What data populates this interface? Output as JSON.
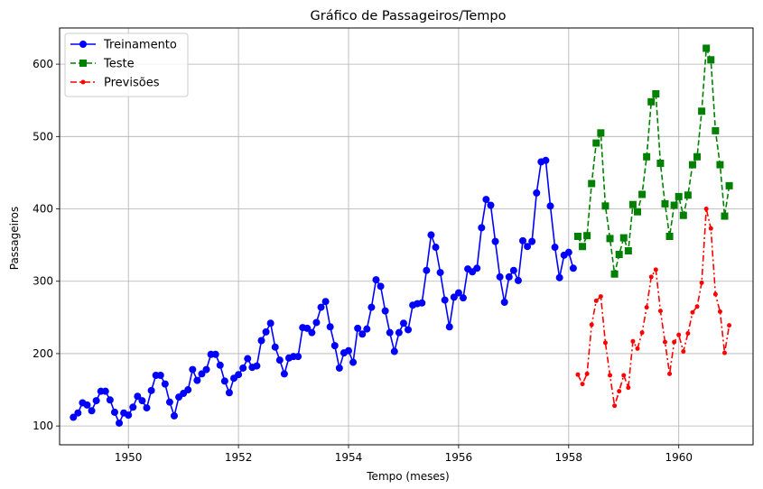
{
  "chart_data": {
    "type": "line",
    "title": "Gráfico de Passageiros/Tempo",
    "xlabel": "Tempo (meses)",
    "ylabel": "Passageiros",
    "xlim": [
      1948.75,
      1961.35
    ],
    "ylim": [
      74,
      650
    ],
    "x_ticks": [
      1950,
      1952,
      1954,
      1956,
      1958,
      1960
    ],
    "y_ticks": [
      100,
      200,
      300,
      400,
      500,
      600
    ],
    "grid": true,
    "legend_position": "top-left",
    "series": [
      {
        "name": "Treinamento",
        "color": "#0000ff",
        "linestyle": "solid",
        "marker": "circle",
        "x_start": 1949.0,
        "x_step": 0.0833333,
        "values": [
          112,
          118,
          132,
          129,
          121,
          135,
          148,
          148,
          136,
          119,
          104,
          118,
          115,
          126,
          141,
          135,
          125,
          149,
          170,
          170,
          158,
          133,
          114,
          140,
          145,
          150,
          178,
          163,
          172,
          178,
          199,
          199,
          184,
          162,
          146,
          166,
          171,
          180,
          193,
          181,
          183,
          218,
          230,
          242,
          209,
          191,
          172,
          194,
          196,
          196,
          236,
          235,
          229,
          243,
          264,
          272,
          237,
          211,
          180,
          201,
          204,
          188,
          235,
          227,
          234,
          264,
          302,
          293,
          259,
          229,
          203,
          229,
          242,
          233,
          267,
          269,
          270,
          315,
          364,
          347,
          312,
          274,
          237,
          278,
          284,
          277,
          317,
          313,
          318,
          374,
          413,
          405,
          355,
          306,
          271,
          306,
          315,
          301,
          356,
          348,
          355,
          422,
          465,
          467,
          404,
          347,
          305,
          336,
          340,
          318
        ]
      },
      {
        "name": "Teste",
        "color": "#008000",
        "linestyle": "dashed",
        "marker": "square",
        "x_start": 1958.1667,
        "x_step": 0.0833333,
        "values": [
          362,
          348,
          363,
          435,
          491,
          505,
          404,
          359,
          310,
          337,
          360,
          342,
          406,
          396,
          420,
          472,
          548,
          559,
          463,
          407,
          362,
          405,
          417,
          391,
          419,
          461,
          472,
          535,
          622,
          606,
          508,
          461,
          390,
          432
        ]
      },
      {
        "name": "Previsões",
        "color": "#ff0000",
        "linestyle": "dashdot",
        "marker": "small-circle",
        "x_start": 1958.1667,
        "x_step": 0.0833333,
        "values": [
          171,
          158,
          172,
          240,
          273,
          279,
          215,
          170,
          128,
          148,
          170,
          153,
          217,
          207,
          229,
          264,
          306,
          316,
          259,
          216,
          172,
          216,
          226,
          203,
          228,
          257,
          265,
          298,
          400,
          373,
          282,
          258,
          201,
          239
        ]
      }
    ]
  }
}
